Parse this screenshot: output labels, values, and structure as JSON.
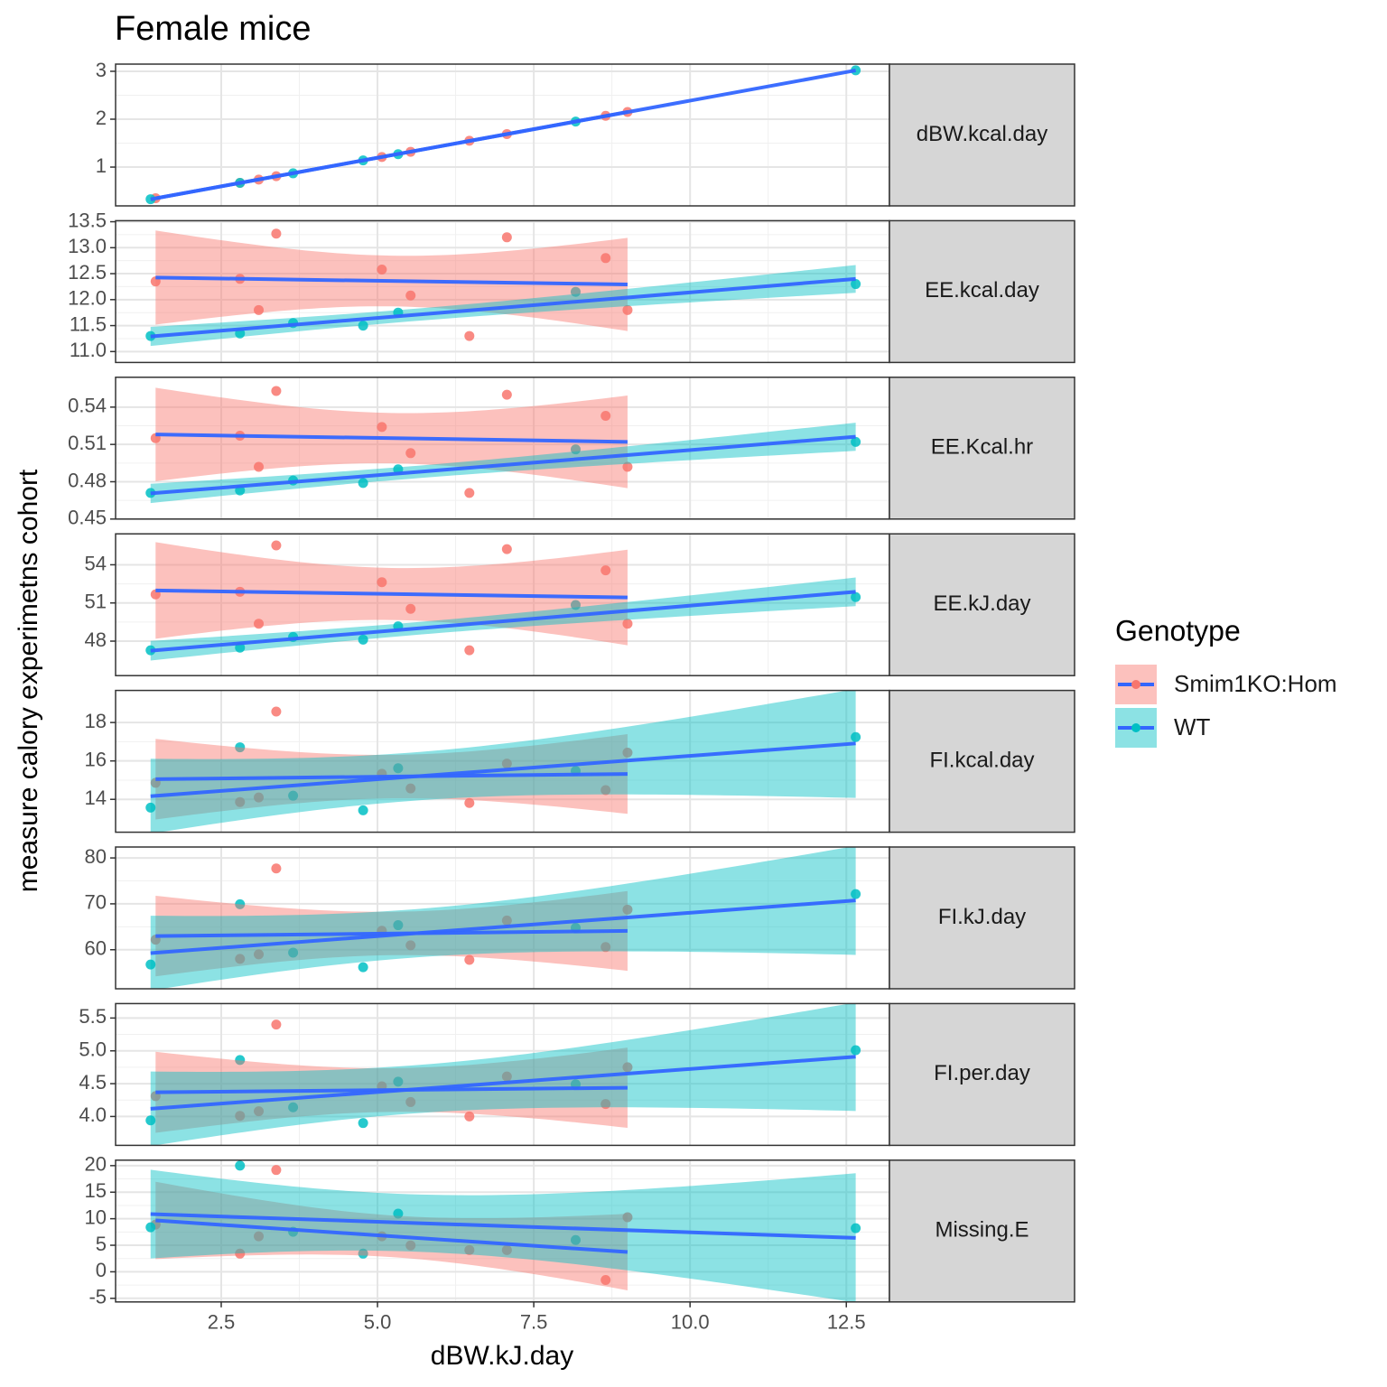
{
  "chart_data": {
    "type": "scatter",
    "title": "Female mice",
    "x_label": "dBW.kJ.day",
    "y_label": "measure calory experimetns cohort",
    "legend_title": "Genotype",
    "fit_color": "#3366FF",
    "grid": true,
    "xlim": [
      0.81,
      13.19
    ],
    "xticks": [
      2.5,
      {
        "value": 5.0,
        "label": "5.0"
      },
      7.5,
      {
        "value": 10.0,
        "label": "10.0"
      },
      12.5
    ],
    "series": [
      {
        "name": "Smim1KO:Hom",
        "color": "#F8766D",
        "x": [
          1.45,
          2.8,
          3.1,
          3.38,
          5.07,
          5.53,
          6.47,
          7.07,
          8.65,
          9.0
        ]
      },
      {
        "name": "WT",
        "color": "#00BFC4",
        "x": [
          1.37,
          2.8,
          3.65,
          4.77,
          5.33,
          8.17,
          12.65
        ]
      }
    ],
    "panels": [
      {
        "label": "dBW.kcal.day",
        "ylim": [
          0.19,
          3.15
        ],
        "yticks": [
          1,
          2,
          3
        ],
        "series": [
          {
            "values": [
              0.35,
              0.67,
              0.74,
              0.81,
              1.21,
              1.32,
              1.55,
              1.69,
              2.07,
              2.15
            ]
          },
          {
            "values": [
              0.33,
              0.67,
              0.87,
              1.14,
              1.27,
              1.95,
              3.02
            ]
          }
        ]
      },
      {
        "label": "EE.kcal.day",
        "ylim": [
          10.79,
          13.52
        ],
        "yticks": [
          {
            "value": 11.0,
            "label": "11.0"
          },
          11.5,
          {
            "value": 12.0,
            "label": "12.0"
          },
          12.5,
          {
            "value": 13.0,
            "label": "13.0"
          },
          13.5
        ],
        "series": [
          {
            "values": [
              12.35,
              12.4,
              11.8,
              13.27,
              12.58,
              12.08,
              11.3,
              13.2,
              12.8,
              11.8
            ]
          },
          {
            "values": [
              11.3,
              11.35,
              11.55,
              11.5,
              11.75,
              12.15,
              12.3
            ]
          }
        ]
      },
      {
        "label": "EE.Kcal.hr",
        "ylim": [
          0.45,
          0.564
        ],
        "yticks": [
          0.45,
          0.48,
          0.51,
          0.54
        ],
        "series": [
          {
            "values": [
              0.515,
              0.517,
              0.492,
              0.553,
              0.524,
              0.503,
              0.471,
              0.55,
              0.533,
              0.492
            ]
          },
          {
            "values": [
              0.471,
              0.473,
              0.481,
              0.479,
              0.49,
              0.506,
              0.512
            ]
          }
        ]
      },
      {
        "label": "EE.kJ.day",
        "ylim": [
          45.29,
          56.43
        ],
        "yticks": [
          48,
          51,
          54
        ],
        "series": [
          {
            "values": [
              51.67,
              51.88,
              49.37,
              55.52,
              52.63,
              50.54,
              47.28,
              55.23,
              53.56,
              49.37
            ]
          },
          {
            "values": [
              47.28,
              47.49,
              48.33,
              48.12,
              49.16,
              50.84,
              51.46
            ]
          }
        ]
      },
      {
        "label": "FI.kcal.day",
        "ylim": [
          12.29,
          19.67
        ],
        "yticks": [
          14,
          16,
          18
        ],
        "series": [
          {
            "values": [
              14.86,
              13.86,
              14.1,
              18.57,
              15.33,
              14.57,
              13.81,
              15.86,
              14.48,
              16.43
            ]
          },
          {
            "values": [
              13.57,
              16.71,
              14.19,
              13.43,
              15.62,
              15.48,
              17.24
            ]
          }
        ]
      },
      {
        "label": "FI.kJ.day",
        "ylim": [
          51.49,
          82.38
        ],
        "yticks": [
          60,
          70,
          80
        ],
        "series": [
          {
            "values": [
              62.18,
              58.0,
              58.99,
              77.7,
              64.14,
              60.96,
              57.78,
              66.36,
              60.58,
              68.74
            ]
          },
          {
            "values": [
              56.78,
              69.92,
              59.37,
              56.19,
              65.35,
              64.77,
              72.13
            ]
          }
        ]
      },
      {
        "label": "FI.per.day",
        "ylim": [
          3.56,
          5.72
        ],
        "yticks": [
          {
            "value": 4.0,
            "label": "4.0"
          },
          4.5,
          {
            "value": 5.0,
            "label": "5.0"
          },
          5.5
        ],
        "series": [
          {
            "values": [
              4.31,
              4.01,
              4.08,
              5.4,
              4.46,
              4.22,
              4.0,
              4.61,
              4.19,
              4.75
            ]
          },
          {
            "values": [
              3.94,
              4.86,
              4.14,
              3.9,
              4.53,
              4.49,
              5.01
            ]
          }
        ]
      },
      {
        "label": "Missing.E",
        "ylim": [
          -5.68,
          21.03
        ],
        "yticks": [
          -5,
          0,
          5,
          10,
          15,
          20
        ],
        "series": [
          {
            "values": [
              8.9,
              3.42,
              6.68,
              19.18,
              6.68,
              4.97,
              4.1,
              4.1,
              -1.54,
              10.27
            ]
          },
          {
            "values": [
              8.39,
              20.0,
              7.53,
              3.42,
              10.96,
              5.99,
              8.22
            ]
          }
        ]
      }
    ]
  }
}
